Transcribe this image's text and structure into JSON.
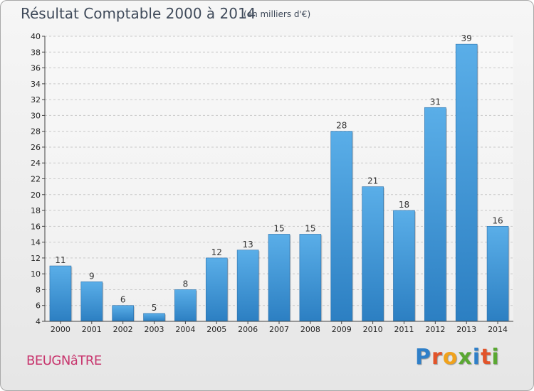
{
  "chart_data": {
    "type": "bar",
    "title": "Résultat Comptable 2000 à 2014",
    "subtitle": "(en milliers d'€)",
    "xlabel": "",
    "ylabel": "",
    "categories": [
      "2000",
      "2001",
      "2002",
      "2003",
      "2004",
      "2005",
      "2006",
      "2007",
      "2008",
      "2009",
      "2010",
      "2011",
      "2012",
      "2013",
      "2014"
    ],
    "values": [
      11,
      9,
      6,
      5,
      8,
      12,
      13,
      15,
      15,
      28,
      21,
      18,
      31,
      39,
      16
    ],
    "ylim": [
      4,
      40
    ],
    "yticks": [
      4,
      6,
      8,
      10,
      12,
      14,
      16,
      18,
      20,
      22,
      24,
      26,
      28,
      30,
      32,
      34,
      36,
      38,
      40
    ],
    "grid": true,
    "bar_color": "#3a92d6"
  },
  "footer": {
    "town": "BEUGNâTRE",
    "brand_letters": [
      "P",
      "r",
      "o",
      "x",
      "i",
      "t",
      "i"
    ],
    "brand_colors": [
      "#2f7fc8",
      "#e2542a",
      "#f0a21c",
      "#5aa832",
      "#2f7fc8",
      "#e2542a",
      "#5aa832"
    ]
  },
  "colors": {
    "title": "#3f4a5a",
    "town": "#c8366e",
    "grid": "#c9c9c9"
  }
}
